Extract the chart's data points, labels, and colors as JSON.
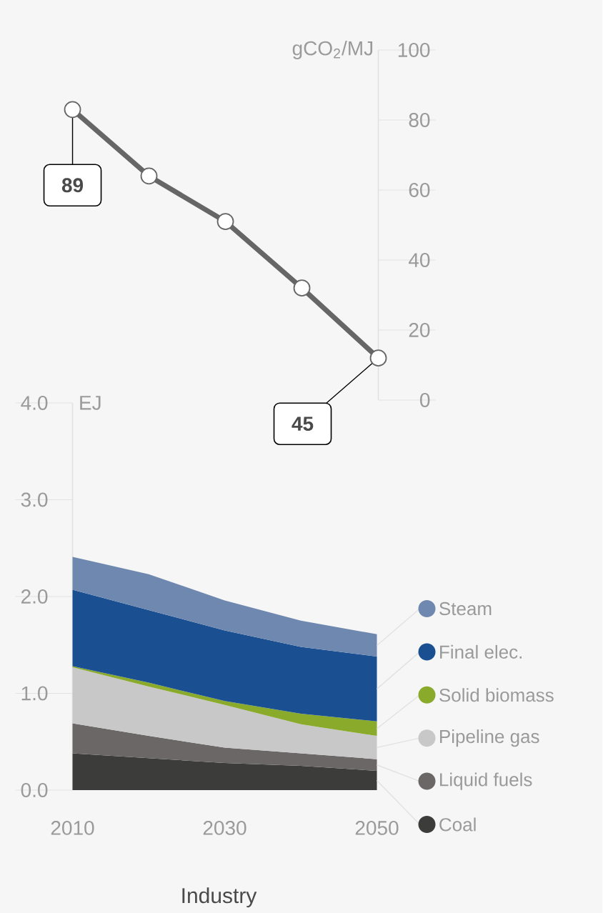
{
  "chart_data": [
    {
      "type": "line",
      "x": [
        2010,
        2020,
        2030,
        2040,
        2050
      ],
      "values": [
        83,
        64,
        51,
        32,
        12
      ],
      "color": "#666666",
      "marker": "circle",
      "xlim": [
        2010,
        2050
      ],
      "ylim": [
        0,
        100
      ],
      "yticks": [
        0,
        20,
        40,
        60,
        80,
        100
      ],
      "ylabel": "gCO$_{2}$/MJ",
      "tick_labels": "y",
      "annotations": [
        {
          "text": "89",
          "x": 2010,
          "y": 83
        },
        {
          "text": "45",
          "x": 2050,
          "y": 12
        }
      ]
    },
    {
      "type": "area",
      "stacked": true,
      "x": [
        2010,
        2020,
        2030,
        2040,
        2050
      ],
      "xlim": [
        2010,
        2050
      ],
      "xticks": [
        2010,
        2030,
        2050
      ],
      "ylim": [
        0,
        4
      ],
      "yticks": [
        {
          "value": 0,
          "label": "0.0"
        },
        {
          "value": 1,
          "label": "1.0"
        },
        {
          "value": 2,
          "label": "2.0"
        },
        {
          "value": 3,
          "label": "3.0"
        },
        {
          "value": 4,
          "label": "4.0"
        }
      ],
      "ylabel": "EJ",
      "xlabel": "Industry",
      "legend": "right",
      "series": [
        {
          "name": "Coal",
          "color": "#3c3c3b",
          "values": [
            0.38,
            0.33,
            0.28,
            0.25,
            0.2
          ]
        },
        {
          "name": "Liquid fuels",
          "color": "#6b6766",
          "values": [
            0.31,
            0.23,
            0.16,
            0.13,
            0.12
          ]
        },
        {
          "name": "Pipeline gas",
          "color": "#c8c8c8",
          "values": [
            0.58,
            0.51,
            0.44,
            0.3,
            0.24
          ]
        },
        {
          "name": "Solid biomass",
          "color": "#8aaa2c",
          "values": [
            0.01,
            0.04,
            0.04,
            0.11,
            0.15
          ]
        },
        {
          "name": "Final elec.",
          "color": "#1a5092",
          "values": [
            0.79,
            0.75,
            0.73,
            0.69,
            0.67
          ]
        },
        {
          "name": "Steam",
          "color": "#6e88b0",
          "values": [
            0.34,
            0.37,
            0.31,
            0.27,
            0.23
          ]
        }
      ]
    }
  ]
}
